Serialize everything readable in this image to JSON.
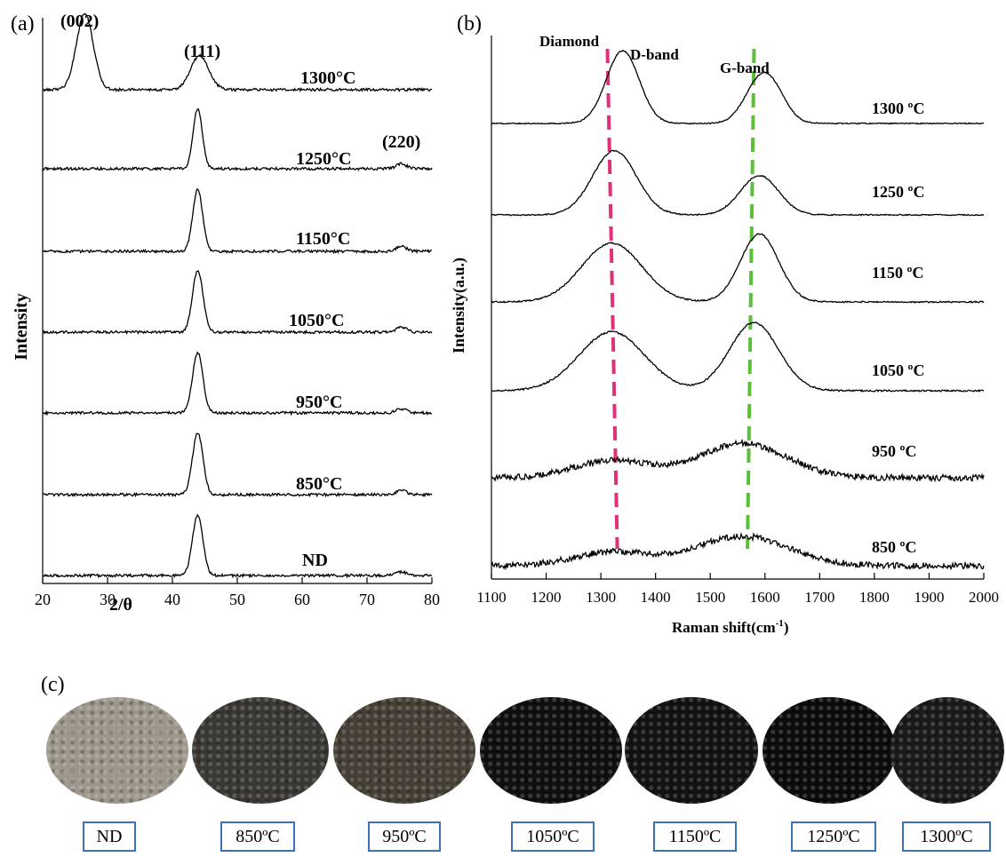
{
  "panels": {
    "a_letter": "(a)",
    "b_letter": "(b)",
    "c_letter": "(c)"
  },
  "chart_data": [
    {
      "type": "line",
      "panel": "(a)",
      "xlabel": "2/θ",
      "ylabel": "Intensity",
      "xlim": [
        20,
        80
      ],
      "xticks": [
        "20",
        "30",
        "40",
        "50",
        "60",
        "70",
        "80"
      ],
      "yticks": "none",
      "grid": false,
      "peak_labels": [
        "(002)",
        "(111)",
        "(220)"
      ],
      "peak_positions": {
        "(002)": 26.5,
        "(111)": 43.9,
        "(220)": 75.3
      },
      "series": [
        {
          "name": "1300°C",
          "peaks": [
            {
              "x": 26.5,
              "h": 1.0,
              "w": 1.3
            },
            {
              "x": 44.2,
              "h": 0.45,
              "w": 1.4
            }
          ]
        },
        {
          "name": "1250°C",
          "peaks": [
            {
              "x": 43.9,
              "h": 1.0,
              "w": 0.7
            },
            {
              "x": 75.3,
              "h": 0.08,
              "w": 0.8
            }
          ]
        },
        {
          "name": "1150°C",
          "peaks": [
            {
              "x": 43.9,
              "h": 1.0,
              "w": 0.75
            },
            {
              "x": 75.3,
              "h": 0.08,
              "w": 0.8
            }
          ]
        },
        {
          "name": "1050°C",
          "peaks": [
            {
              "x": 43.9,
              "h": 1.0,
              "w": 0.8
            },
            {
              "x": 75.3,
              "h": 0.08,
              "w": 0.8
            }
          ]
        },
        {
          "name": "950°C",
          "peaks": [
            {
              "x": 43.9,
              "h": 1.0,
              "w": 0.8
            },
            {
              "x": 75.3,
              "h": 0.07,
              "w": 0.8
            }
          ]
        },
        {
          "name": "850°C",
          "peaks": [
            {
              "x": 43.9,
              "h": 1.0,
              "w": 0.8
            },
            {
              "x": 75.3,
              "h": 0.07,
              "w": 0.8
            }
          ]
        },
        {
          "name": "ND",
          "peaks": [
            {
              "x": 43.9,
              "h": 1.0,
              "w": 0.8
            },
            {
              "x": 75.3,
              "h": 0.06,
              "w": 0.8
            }
          ]
        }
      ]
    },
    {
      "type": "line",
      "panel": "(b)",
      "xlabel": "Raman shift(cm⁻¹)",
      "xlabel_main": "Raman shift(cm",
      "xlabel_sup": "-1",
      "xlabel_close": ")",
      "ylabel": "Intensity(a.u.)",
      "xlim": [
        1100,
        2000
      ],
      "xticks": [
        "1100",
        "1200",
        "1300",
        "1400",
        "1500",
        "1600",
        "1700",
        "1800",
        "1900",
        "2000"
      ],
      "yticks": "none",
      "grid": false,
      "annotations": [
        "Diamond",
        "D-band",
        "G-band"
      ],
      "reference_lines": [
        {
          "label": "Diamond",
          "x_top": 1312,
          "x_bottom": 1330,
          "color": "#e0307a",
          "style": "dashed"
        },
        {
          "label": "G-band",
          "x_top": 1580,
          "x_bottom": 1568,
          "color": "#5cbf3a",
          "style": "dashed"
        }
      ],
      "series": [
        {
          "name": "1300 ºC",
          "peaks": [
            {
              "x": 1340,
              "h": 1.0,
              "w": 30
            },
            {
              "x": 1590,
              "h": 0.55,
              "w": 28
            },
            {
              "x": 1620,
              "h": 0.25,
              "w": 25
            }
          ]
        },
        {
          "name": "1250 ºC",
          "peaks": [
            {
              "x": 1325,
              "h": 0.85,
              "w": 40
            },
            {
              "x": 1590,
              "h": 0.52,
              "w": 35
            }
          ]
        },
        {
          "name": "1150 ºC",
          "peaks": [
            {
              "x": 1320,
              "h": 0.78,
              "w": 55
            },
            {
              "x": 1590,
              "h": 0.9,
              "w": 35
            }
          ]
        },
        {
          "name": "1050 ºC",
          "peaks": [
            {
              "x": 1320,
              "h": 0.78,
              "w": 60
            },
            {
              "x": 1580,
              "h": 0.9,
              "w": 45
            }
          ]
        },
        {
          "name": "950 ºC",
          "peaks": [
            {
              "x": 1320,
              "h": 0.35,
              "w": 70
            },
            {
              "x": 1560,
              "h": 0.7,
              "w": 80
            }
          ]
        },
        {
          "name": "850 ºC",
          "peaks": [
            {
              "x": 1320,
              "h": 0.28,
              "w": 70
            },
            {
              "x": 1560,
              "h": 0.6,
              "w": 85
            }
          ]
        }
      ]
    }
  ],
  "photos": {
    "labels": [
      "ND",
      "850ºC",
      "950ºC",
      "1050ºC",
      "1150ºC",
      "1250ºC",
      "1300ºC"
    ],
    "colors": [
      "#9c968b",
      "#3b3834",
      "#453f35",
      "#0f0f10",
      "#121214",
      "#0b0b0c",
      "#1a1a1c"
    ]
  }
}
